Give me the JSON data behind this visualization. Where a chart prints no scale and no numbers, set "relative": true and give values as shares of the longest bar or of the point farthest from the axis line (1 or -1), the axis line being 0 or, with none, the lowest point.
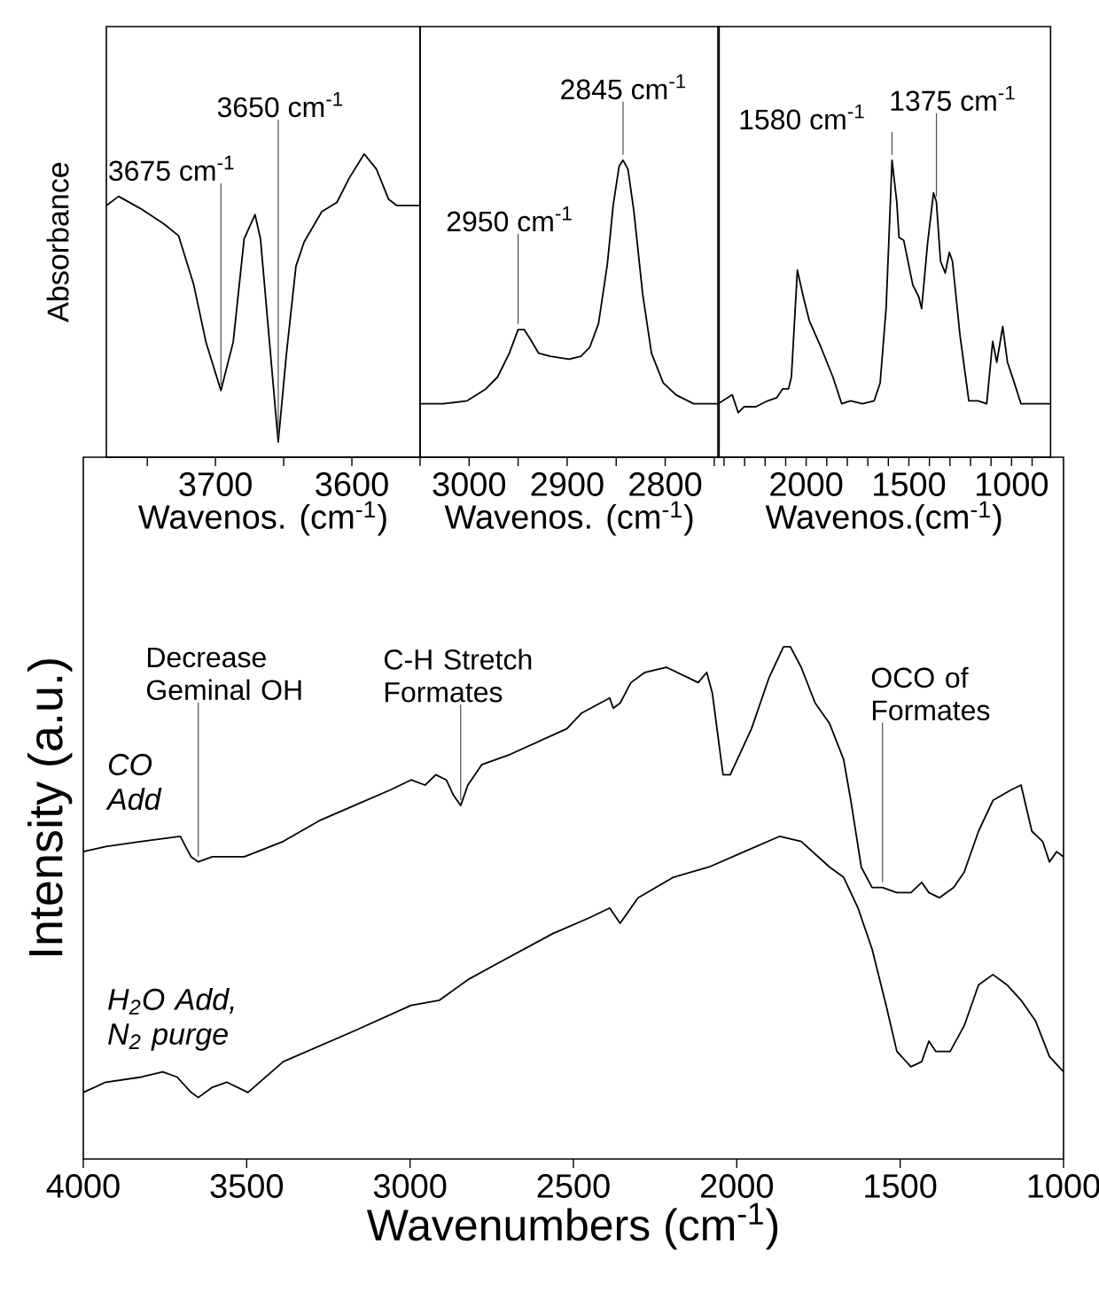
{
  "chart_data": [
    {
      "type": "line",
      "ylabel": "Absorbance",
      "xlabel": "Wavenos. (cm$^{-1}$)",
      "relative": true,
      "color": "#000000",
      "xlim": [
        3780,
        3550
      ],
      "xticks": [
        {
          "value": 3750,
          "label": null
        },
        3700,
        {
          "value": 3650,
          "label": null
        },
        3600,
        {
          "value": 3550,
          "label": null
        }
      ],
      "x": [
        3780,
        3771,
        3755,
        3738,
        3727,
        3716,
        3707,
        3696,
        3687,
        3679,
        3671,
        3667,
        3661,
        3654,
        3648,
        3641,
        3635,
        3622,
        3611,
        3602,
        3591,
        3582,
        3573,
        3567,
        3550
      ],
      "values": [
        0.83,
        0.86,
        0.82,
        0.77,
        0.73,
        0.57,
        0.38,
        0.22,
        0.38,
        0.72,
        0.8,
        0.72,
        0.41,
        0.05,
        0.34,
        0.63,
        0.71,
        0.81,
        0.84,
        0.92,
        1.0,
        0.95,
        0.85,
        0.83,
        0.83
      ],
      "annotations": [
        {
          "text": "3675 cm$^{-1}$",
          "x": 3696,
          "y": 0.22
        },
        {
          "text": "3650 cm$^{-1}$",
          "x": 3654,
          "y": 0.05
        }
      ]
    },
    {
      "type": "line",
      "xlabel": "Wavenos. (cm$^{-1}$)",
      "relative": true,
      "color": "#000000",
      "xlim": [
        3050,
        2745
      ],
      "xticks": [
        3000,
        {
          "value": 2950,
          "label": null
        },
        2900,
        {
          "value": 2850,
          "label": null
        },
        2800,
        {
          "value": 2750,
          "label": null
        }
      ],
      "x": [
        3050,
        3026,
        3002,
        2983,
        2971,
        2959,
        2950,
        2944,
        2938,
        2929,
        2917,
        2898,
        2886,
        2877,
        2868,
        2859,
        2853,
        2847,
        2843,
        2838,
        2832,
        2823,
        2814,
        2802,
        2789,
        2771,
        2745
      ],
      "values": [
        0.18,
        0.18,
        0.19,
        0.23,
        0.27,
        0.35,
        0.43,
        0.43,
        0.4,
        0.35,
        0.34,
        0.33,
        0.34,
        0.37,
        0.45,
        0.65,
        0.85,
        0.98,
        1.0,
        0.97,
        0.83,
        0.55,
        0.35,
        0.25,
        0.21,
        0.18,
        0.18
      ],
      "annotations": [
        {
          "text": "2950 cm$^{-1}$",
          "x": 2950,
          "y": 0.43
        },
        {
          "text": "2845 cm$^{-1}$",
          "x": 2843,
          "y": 1.0
        }
      ]
    },
    {
      "type": "line",
      "xlabel": "Wavenos.(cm$^{-1}$)",
      "relative": true,
      "color": "#000000",
      "xlim": [
        2430,
        810
      ],
      "xticks": [
        {
          "value": 2400,
          "label": null
        },
        {
          "value": 2300,
          "label": null
        },
        {
          "value": 2200,
          "label": null
        },
        {
          "value": 2100,
          "label": null
        },
        2000,
        {
          "value": 1900,
          "label": null
        },
        {
          "value": 1800,
          "label": null
        },
        {
          "value": 1700,
          "label": null
        },
        {
          "value": 1600,
          "label": null
        },
        1500,
        {
          "value": 1400,
          "label": null
        },
        {
          "value": 1300,
          "label": null
        },
        {
          "value": 1200,
          "label": null
        },
        {
          "value": 1100,
          "label": null
        },
        1000,
        {
          "value": 900,
          "label": null
        }
      ],
      "x": [
        2430,
        2360,
        2331,
        2302,
        2245,
        2187,
        2144,
        2115,
        2086,
        2072,
        2043,
        2014,
        1985,
        1928,
        1870,
        1827,
        1784,
        1726,
        1669,
        1640,
        1611,
        1597,
        1582,
        1559,
        1548,
        1525,
        1481,
        1452,
        1438,
        1409,
        1380,
        1366,
        1346,
        1323,
        1303,
        1288,
        1251,
        1208,
        1164,
        1121,
        1092,
        1072,
        1043,
        1020,
        991,
        954,
        919,
        812
      ],
      "values": [
        0.18,
        0.21,
        0.15,
        0.17,
        0.17,
        0.19,
        0.2,
        0.23,
        0.23,
        0.27,
        0.63,
        0.54,
        0.46,
        0.37,
        0.27,
        0.18,
        0.19,
        0.18,
        0.19,
        0.25,
        0.5,
        0.74,
        1.0,
        0.86,
        0.74,
        0.73,
        0.58,
        0.54,
        0.5,
        0.72,
        0.89,
        0.86,
        0.66,
        0.62,
        0.69,
        0.66,
        0.41,
        0.19,
        0.19,
        0.18,
        0.39,
        0.32,
        0.44,
        0.32,
        0.26,
        0.18,
        0.18,
        0.18
      ],
      "annotations": [
        {
          "text": "1580 cm$^{-1}$",
          "x": 1582,
          "y": 1.0
        },
        {
          "text": "1375 cm$^{-1}$",
          "x": 1366,
          "y": 0.86
        }
      ]
    },
    {
      "type": "line",
      "xlabel": "Wavenumbers (cm$^{-1}$)",
      "ylabel": "Intensity (a.u.)",
      "relative": true,
      "xlim": [
        4000,
        1000
      ],
      "xticks": [
        4000,
        3500,
        3000,
        2500,
        2000,
        1500,
        1000
      ],
      "series": [
        {
          "name": "CO Add",
          "color": "#000000",
          "x": [
            4000,
            3931,
            3822,
            3703,
            3687,
            3670,
            3648,
            3605,
            3507,
            3388,
            3279,
            3171,
            3062,
            2997,
            2954,
            2921,
            2889,
            2867,
            2845,
            2823,
            2780,
            2693,
            2520,
            2476,
            2389,
            2378,
            2357,
            2324,
            2281,
            2216,
            2150,
            2118,
            2092,
            2075,
            2042,
            2020,
            1955,
            1901,
            1857,
            1836,
            1803,
            1760,
            1716,
            1673,
            1651,
            1619,
            1586,
            1554,
            1510,
            1467,
            1434,
            1412,
            1380,
            1336,
            1304,
            1260,
            1216,
            1162,
            1130,
            1097,
            1064,
            1043,
            1021,
            1000
          ],
          "values": [
            0.6,
            0.61,
            0.62,
            0.63,
            0.61,
            0.59,
            0.58,
            0.59,
            0.59,
            0.62,
            0.66,
            0.69,
            0.72,
            0.74,
            0.73,
            0.75,
            0.74,
            0.71,
            0.69,
            0.73,
            0.77,
            0.79,
            0.84,
            0.87,
            0.9,
            0.88,
            0.89,
            0.93,
            0.95,
            0.96,
            0.94,
            0.93,
            0.95,
            0.91,
            0.75,
            0.75,
            0.84,
            0.94,
            1.0,
            1.0,
            0.96,
            0.89,
            0.85,
            0.78,
            0.7,
            0.57,
            0.53,
            0.53,
            0.52,
            0.52,
            0.54,
            0.52,
            0.51,
            0.53,
            0.56,
            0.64,
            0.7,
            0.72,
            0.73,
            0.64,
            0.62,
            0.58,
            0.6,
            0.59
          ]
        },
        {
          "name": "H$_{2}$O Add, N$_{2}$ purge",
          "color": "#000000",
          "x": [
            4000,
            3931,
            3822,
            3757,
            3713,
            3670,
            3648,
            3605,
            3561,
            3496,
            3388,
            3171,
            2997,
            2910,
            2823,
            2737,
            2563,
            2454,
            2389,
            2357,
            2335,
            2302,
            2194,
            2085,
            1977,
            1868,
            1803,
            1716,
            1673,
            1629,
            1586,
            1543,
            1510,
            1467,
            1434,
            1412,
            1391,
            1347,
            1304,
            1260,
            1216,
            1173,
            1130,
            1086,
            1043,
            1000
          ],
          "values": [
            0.13,
            0.15,
            0.16,
            0.17,
            0.16,
            0.13,
            0.12,
            0.14,
            0.15,
            0.13,
            0.19,
            0.25,
            0.3,
            0.31,
            0.35,
            0.38,
            0.44,
            0.47,
            0.49,
            0.46,
            0.48,
            0.51,
            0.55,
            0.57,
            0.6,
            0.63,
            0.62,
            0.57,
            0.55,
            0.49,
            0.41,
            0.3,
            0.21,
            0.18,
            0.19,
            0.23,
            0.21,
            0.21,
            0.26,
            0.34,
            0.36,
            0.34,
            0.31,
            0.27,
            0.2,
            0.17
          ]
        }
      ],
      "annotations": [
        {
          "text": "Decrease Geminal OH",
          "x": 3648,
          "y": 0.58
        },
        {
          "text": "C-H Stretch Formates",
          "x": 2845,
          "y": 0.69
        },
        {
          "text": "OCO of Formates",
          "x": 1554,
          "y": 0.53
        }
      ]
    }
  ]
}
